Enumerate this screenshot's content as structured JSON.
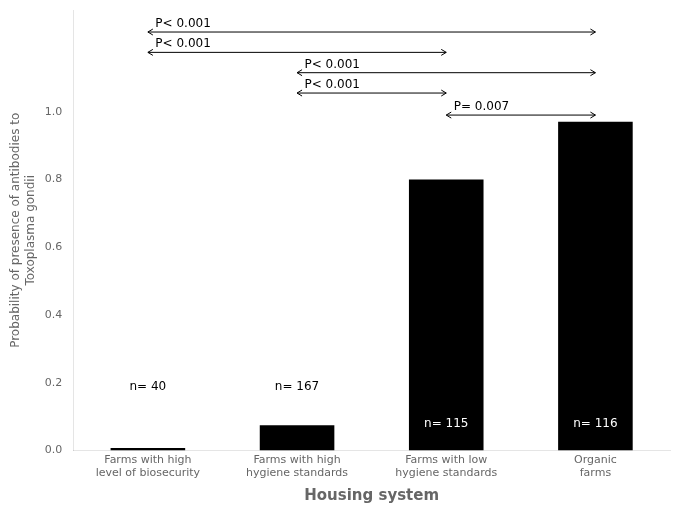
{
  "chart_data": {
    "type": "bar",
    "categories": [
      "Farms with high\nlevel of biosecurity",
      "Farms with high\nhygiene standards",
      "Farms with low\nhygiene standards",
      "Organic\nfarms"
    ],
    "values": [
      0.008,
      0.075,
      0.8,
      0.97
    ],
    "color": "#000000",
    "xlabel": "Housing system",
    "ylabel": "Probability of presence of antibodies to\nToxoplasma gondii",
    "ylim": [
      0,
      1.3
    ],
    "yticks": [
      {
        "value": 0.0,
        "label": "0.0"
      },
      0.2,
      0.4,
      0.6,
      0.8,
      {
        "value": 1.0,
        "label": "1.0"
      }
    ],
    "grid": false,
    "annotations": [
      {
        "text": "n= 40",
        "x": 0,
        "y": 0.17,
        "color": "black"
      },
      {
        "text": "n= 167",
        "x": 1,
        "y": 0.17,
        "color": "black"
      },
      {
        "text": "n= 115",
        "x": 2,
        "y": 0.06,
        "color": "white"
      },
      {
        "text": "n= 116",
        "x": 3,
        "y": 0.06,
        "color": "white"
      }
    ],
    "significance_lines": [
      {
        "x1": 0,
        "x2": 3,
        "y": 1.235,
        "label": "P< 0.001"
      },
      {
        "x1": 0,
        "x2": 2,
        "y": 1.175,
        "label": "P< 0.001"
      },
      {
        "x1": 1,
        "x2": 3,
        "y": 1.115,
        "label": "P< 0.001"
      },
      {
        "x1": 1,
        "x2": 2,
        "y": 1.055,
        "label": "P< 0.001"
      },
      {
        "x1": 2,
        "x2": 3,
        "y": 0.99,
        "label": "P= 0.007"
      }
    ]
  }
}
